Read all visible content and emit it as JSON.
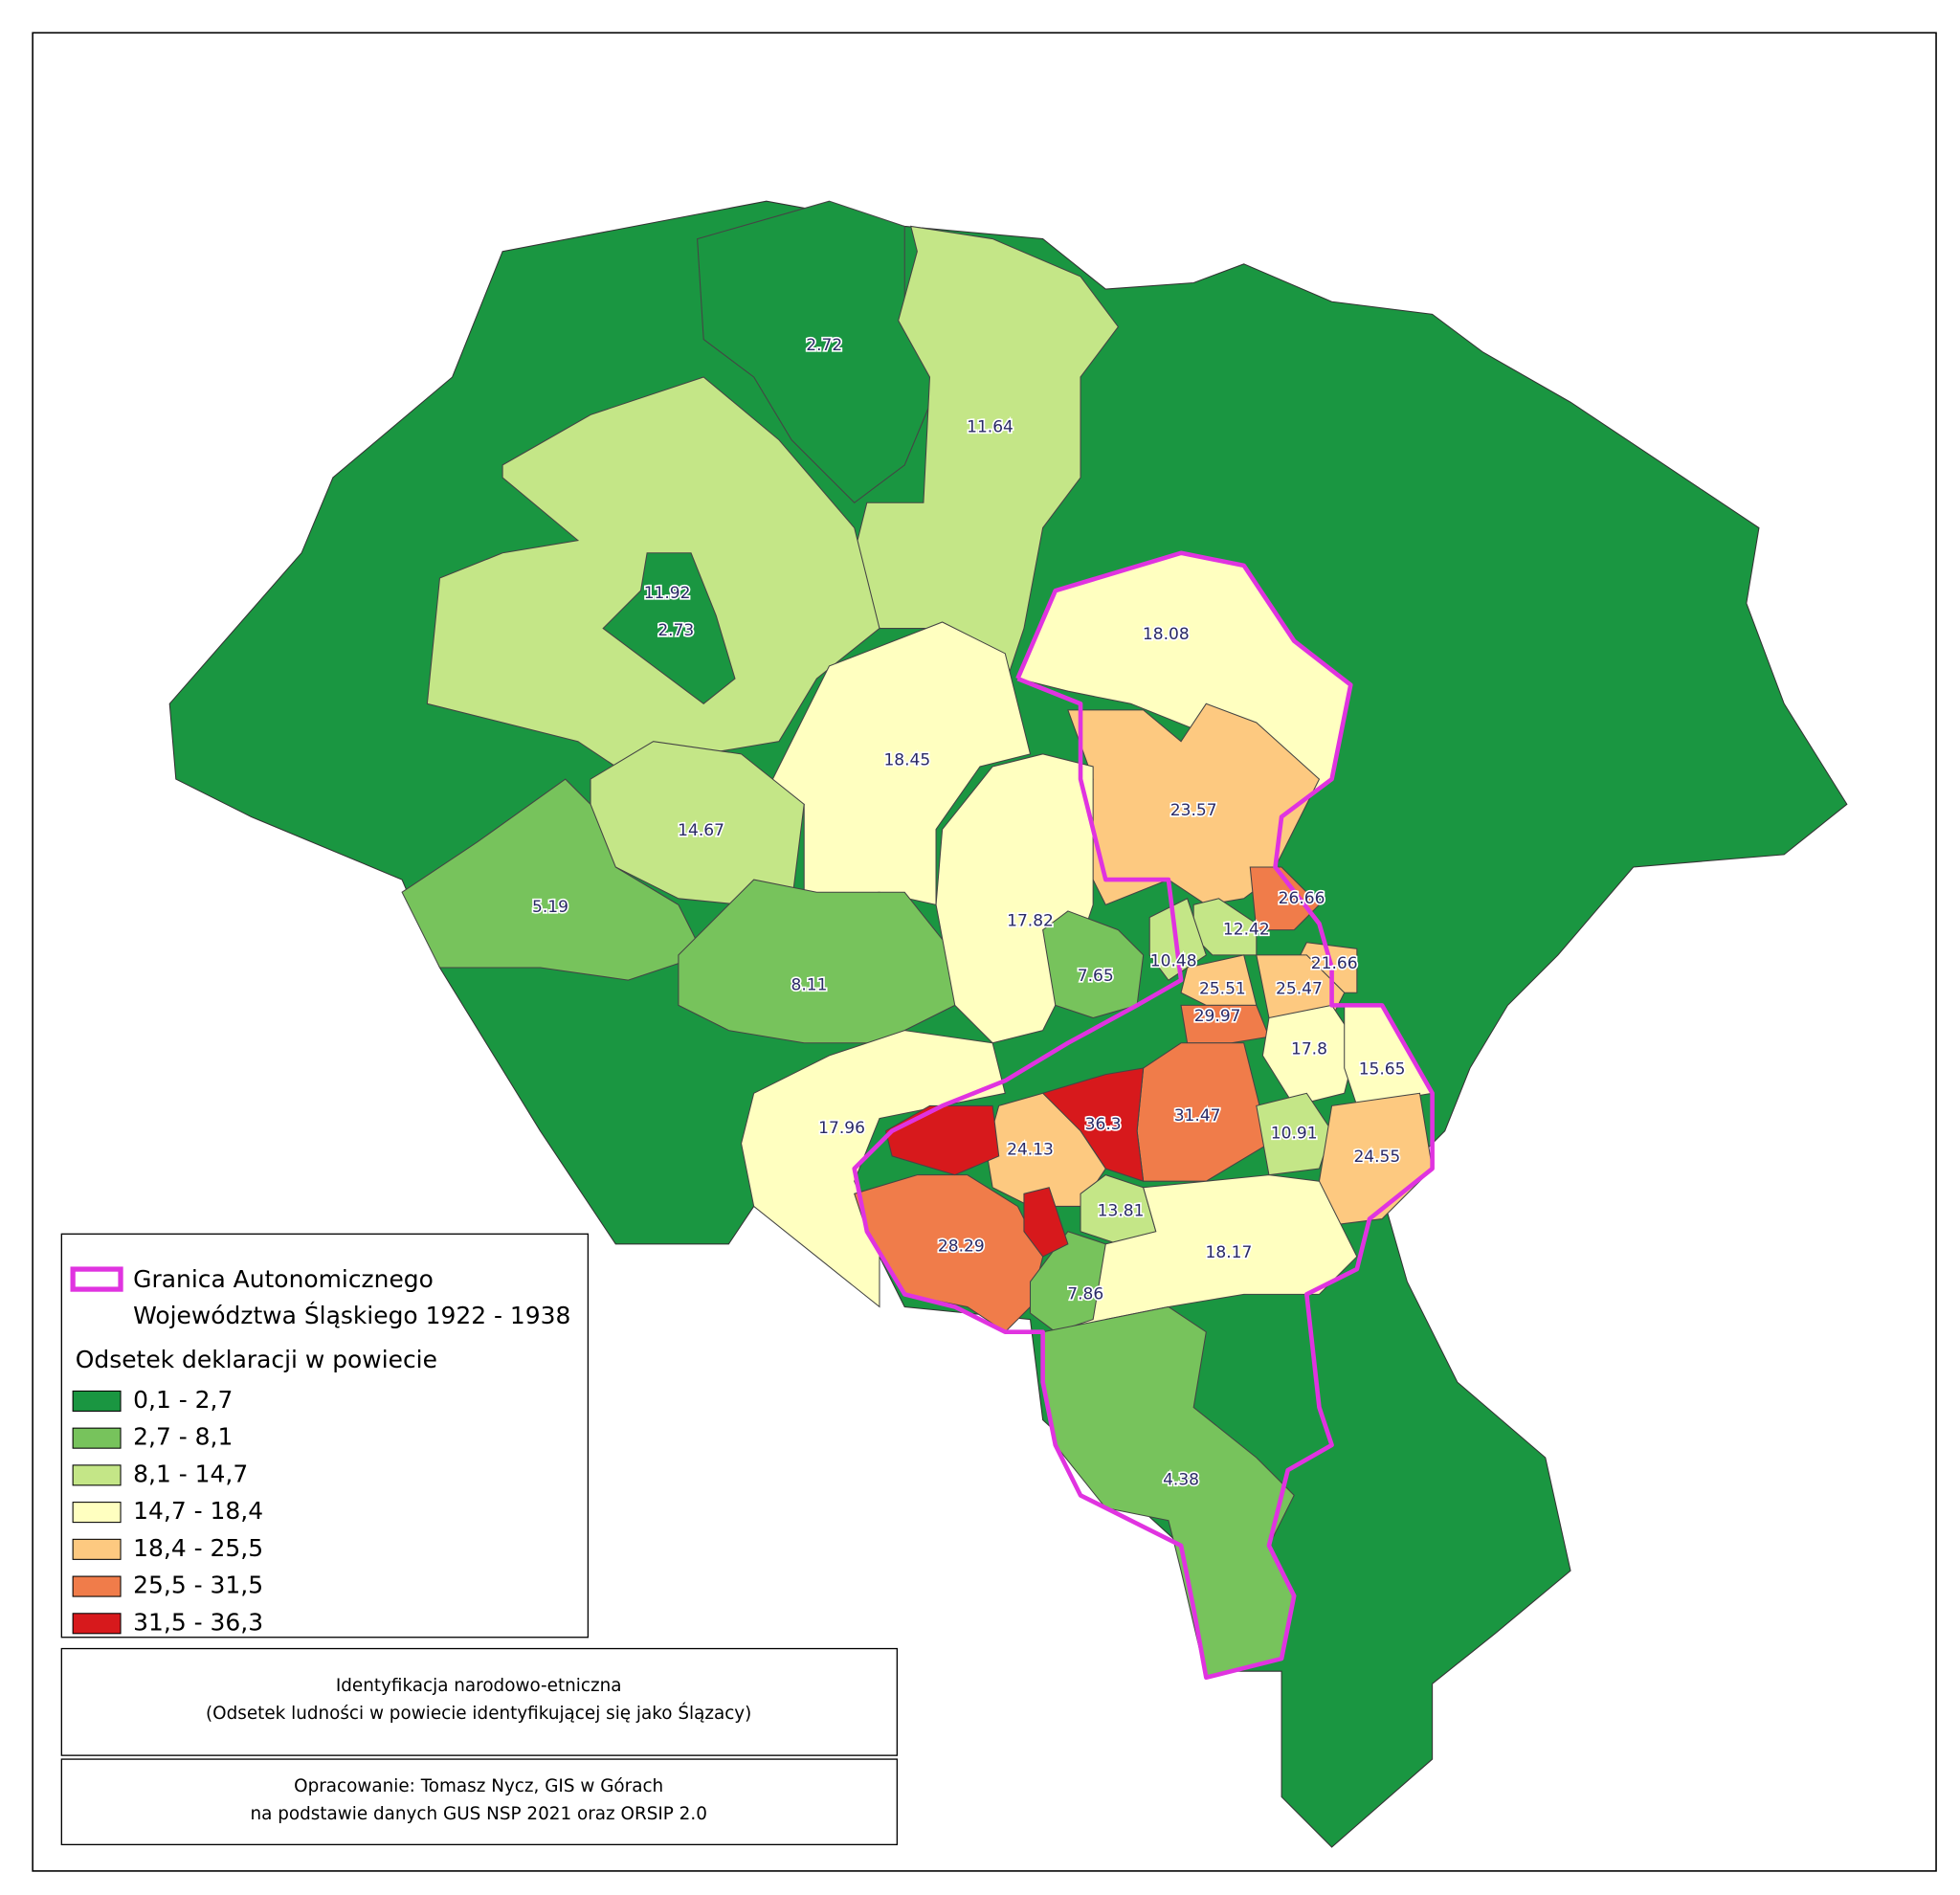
{
  "map": {
    "regions": [
      {
        "value": 2.72,
        "color": "#1a9641"
      },
      {
        "value": 11.64,
        "color": "#c4e687"
      },
      {
        "value": 11.92,
        "color": "#c4e687"
      },
      {
        "value": 2.73,
        "color": "#1a9641"
      },
      {
        "value": 18.08,
        "color": "#ffffc0"
      },
      {
        "value": 18.45,
        "color": "#ffffc0"
      },
      {
        "value": 23.57,
        "color": "#fdc980"
      },
      {
        "value": 14.67,
        "color": "#c4e687"
      },
      {
        "value": 5.19,
        "color": "#77c35c"
      },
      {
        "value": 8.11,
        "color": "#77c35c"
      },
      {
        "value": 17.82,
        "color": "#ffffc0"
      },
      {
        "value": 7.65,
        "color": "#77c35c"
      },
      {
        "value": 26.66,
        "color": "#f07c4a"
      },
      {
        "value": 12.42,
        "color": "#c4e687"
      },
      {
        "value": 10.48,
        "color": "#c4e687"
      },
      {
        "value": 21.66,
        "color": "#fdc980"
      },
      {
        "value": 25.51,
        "color": "#fdc980"
      },
      {
        "value": 25.47,
        "color": "#fdc980"
      },
      {
        "value": 29.97,
        "color": "#f07c4a"
      },
      {
        "value": 17.8,
        "color": "#ffffc0"
      },
      {
        "value": 15.65,
        "color": "#ffffc0"
      },
      {
        "value": 31.47,
        "color": "#f07c4a"
      },
      {
        "value": 36.3,
        "color": "#d7191c"
      },
      {
        "value": 17.96,
        "color": "#ffffc0"
      },
      {
        "value": 24.13,
        "color": "#fdc980"
      },
      {
        "value": 10.91,
        "color": "#c4e687"
      },
      {
        "value": 24.55,
        "color": "#fdc980"
      },
      {
        "value": 13.81,
        "color": "#c4e687"
      },
      {
        "value": 28.29,
        "color": "#f07c4a"
      },
      {
        "value": 18.17,
        "color": "#ffffc0"
      },
      {
        "value": 7.86,
        "color": "#77c35c"
      },
      {
        "value": 4.38,
        "color": "#77c35c"
      }
    ]
  },
  "legend": {
    "boundary_label": [
      "Granica Autonomicznego",
      "Województwa Śląskiego 1922 - 1938"
    ],
    "boundary_color": "#e033e0",
    "title": "Odsetek deklaracji w powiecie",
    "classes": [
      {
        "label": "0,1 - 2,7",
        "color": "#1a9641"
      },
      {
        "label": "2,7 - 8,1",
        "color": "#77c35c"
      },
      {
        "label": "8,1 - 14,7",
        "color": "#c4e687"
      },
      {
        "label": "14,7 - 18,4",
        "color": "#ffffc0"
      },
      {
        "label": "18,4 - 25,5",
        "color": "#fdc980"
      },
      {
        "label": "25,5 - 31,5",
        "color": "#f07c4a"
      },
      {
        "label": "31,5 - 36,3",
        "color": "#d7191c"
      }
    ]
  },
  "caption": [
    "Identyfikacja narodowo-etniczna",
    "(Odsetek ludności w powiecie identyfikującej się jako Ślązacy)"
  ],
  "credits": [
    "Opracowanie: Tomasz Nycz, GIS w Górach",
    "na podstawie danych GUS NSP 2021 oraz ORSIP 2.0"
  ]
}
